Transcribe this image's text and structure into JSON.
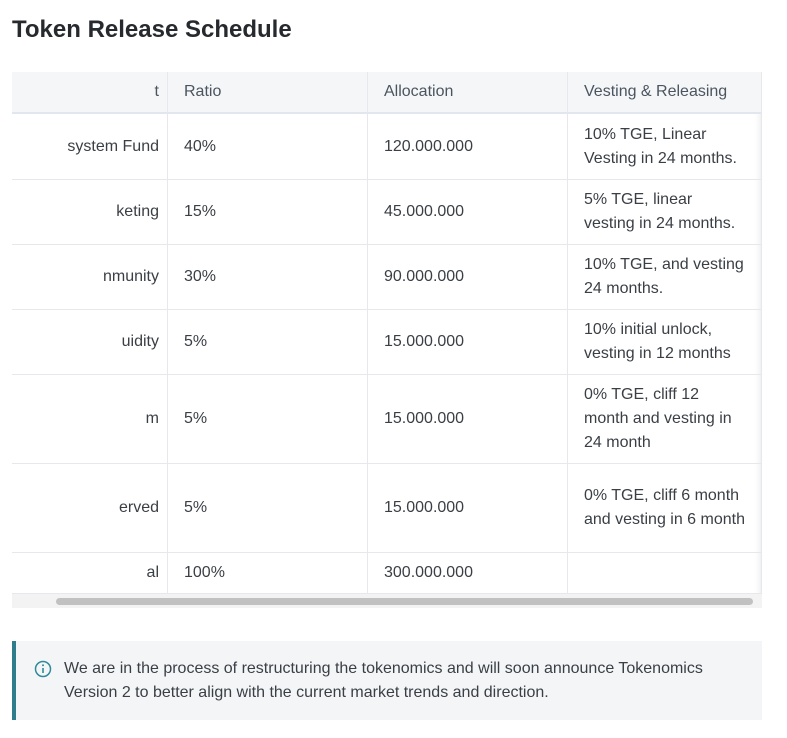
{
  "title": "Token Release Schedule",
  "table": {
    "header": [
      "t",
      "Ratio",
      "Allocation",
      "Vesting & Releasing"
    ],
    "rows": [
      [
        "system Fund",
        "40%",
        "120.000.000",
        "10% TGE, Linear Vesting in 24 months."
      ],
      [
        "keting",
        "15%",
        "45.000.000",
        "5% TGE, linear vesting in 24 months."
      ],
      [
        "nmunity",
        "30%",
        "90.000.000",
        "10% TGE, and vesting 24 months."
      ],
      [
        "uidity",
        "5%",
        "15.000.000",
        "10% initial unlock, vesting in 12 months"
      ],
      [
        "m",
        "5%",
        "15.000.000",
        "0% TGE, cliff 12 month and vesting in 24 month"
      ],
      [
        "erved",
        "5%",
        "15.000.000",
        "0% TGE, cliff 6 month and vesting in 6 month"
      ],
      [
        "al",
        "100%",
        "300.000.000"
      ]
    ]
  },
  "notice": "We are in the process of restructuring the tokenomics and will soon announce Tokenomics Version 2 to better align with the current market trends and direction."
}
